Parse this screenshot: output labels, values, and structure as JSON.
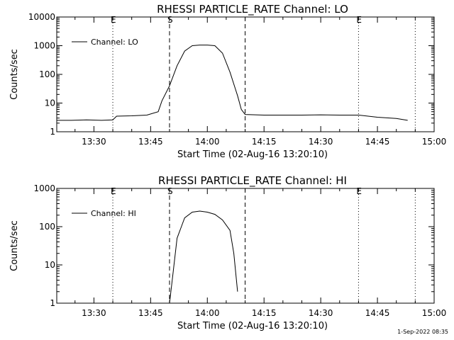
{
  "chart_data": [
    {
      "type": "line",
      "title": "RHESSI PARTICLE_RATE Channel: LO",
      "xlabel": "Start Time (02-Aug-16 13:20:10)",
      "ylabel": "Counts/sec",
      "yscale": "log",
      "xlim": [
        "13:20:10",
        "15:00"
      ],
      "ylim": [
        1,
        10000
      ],
      "x_ticks": [
        "13:30",
        "13:45",
        "14:00",
        "14:15",
        "14:30",
        "14:45",
        "15:00"
      ],
      "y_ticks": [
        "1",
        "10",
        "100",
        "1000",
        "10000"
      ],
      "legend": "top-left",
      "grid": false,
      "series": [
        {
          "name": "Channel: LO",
          "color": "#000000",
          "x": [
            "13:20:10",
            "13:24",
            "13:28",
            "13:32",
            "13:35",
            "13:36",
            "13:40",
            "13:44",
            "13:47",
            "13:48",
            "13:50",
            "13:52",
            "13:54",
            "13:56",
            "13:58",
            "14:00",
            "14:02",
            "14:04",
            "14:06",
            "14:08",
            "14:09",
            "14:10",
            "14:15",
            "14:20",
            "14:25",
            "14:30",
            "14:35",
            "14:40",
            "14:45",
            "14:50",
            "14:53"
          ],
          "y": [
            2.5,
            2.5,
            2.6,
            2.5,
            2.6,
            3.5,
            3.6,
            3.8,
            5,
            12,
            40,
            200,
            650,
            1000,
            1050,
            1050,
            1000,
            550,
            120,
            18,
            6,
            4,
            3.8,
            3.8,
            3.8,
            3.9,
            3.8,
            3.8,
            3.2,
            2.9,
            2.5
          ]
        }
      ],
      "vlines": [
        {
          "x": "13:35",
          "style": "dotted",
          "label": "E"
        },
        {
          "x": "13:50",
          "style": "dashed",
          "label": "S"
        },
        {
          "x": "14:10",
          "style": "dashed",
          "label": ""
        },
        {
          "x": "14:40",
          "style": "dotted",
          "label": "E"
        },
        {
          "x": "14:55",
          "style": "dotted",
          "label": ""
        }
      ]
    },
    {
      "type": "line",
      "title": "RHESSI PARTICLE_RATE Channel: HI",
      "xlabel": "Start Time (02-Aug-16 13:20:10)",
      "ylabel": "Counts/sec",
      "yscale": "log",
      "xlim": [
        "13:20:10",
        "15:00"
      ],
      "ylim": [
        1,
        1000
      ],
      "x_ticks": [
        "13:30",
        "13:45",
        "14:00",
        "14:15",
        "14:30",
        "14:45",
        "15:00"
      ],
      "y_ticks": [
        "1",
        "10",
        "100",
        "1000"
      ],
      "legend": "top-left",
      "grid": false,
      "series": [
        {
          "name": "Channel: HI",
          "color": "#000000",
          "x": [
            "13:50",
            "13:51",
            "13:52",
            "13:54",
            "13:56",
            "13:58",
            "14:00",
            "14:02",
            "14:04",
            "14:06",
            "14:07",
            "14:08"
          ],
          "y": [
            1,
            7,
            50,
            170,
            240,
            255,
            240,
            210,
            150,
            80,
            20,
            2
          ]
        }
      ],
      "vlines": [
        {
          "x": "13:35",
          "style": "dotted",
          "label": "E"
        },
        {
          "x": "13:50",
          "style": "dashed",
          "label": "S"
        },
        {
          "x": "14:10",
          "style": "dashed",
          "label": ""
        },
        {
          "x": "14:40",
          "style": "dotted",
          "label": "E"
        },
        {
          "x": "14:55",
          "style": "dotted",
          "label": ""
        }
      ]
    }
  ],
  "footer": {
    "timestamp": "1-Sep-2022 08:35"
  }
}
